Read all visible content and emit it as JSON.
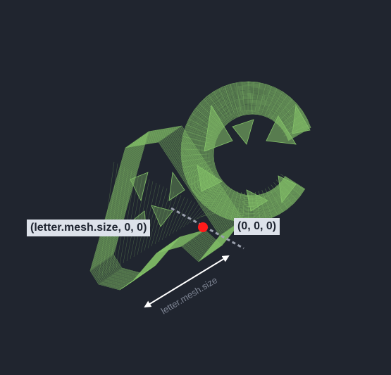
{
  "scene": {
    "background": "#20252f",
    "wire_color": "#86c46a",
    "marker_color": "#ff1a1a",
    "arrow_color": "#ffffff",
    "guide_color": "#9aa0ad"
  },
  "labels": {
    "left_point": "(letter.mesh.size, 0, 0)",
    "origin_point": "(0, 0, 0)",
    "dimension": "letter.mesh.size"
  },
  "letters": [
    "A",
    "C"
  ]
}
